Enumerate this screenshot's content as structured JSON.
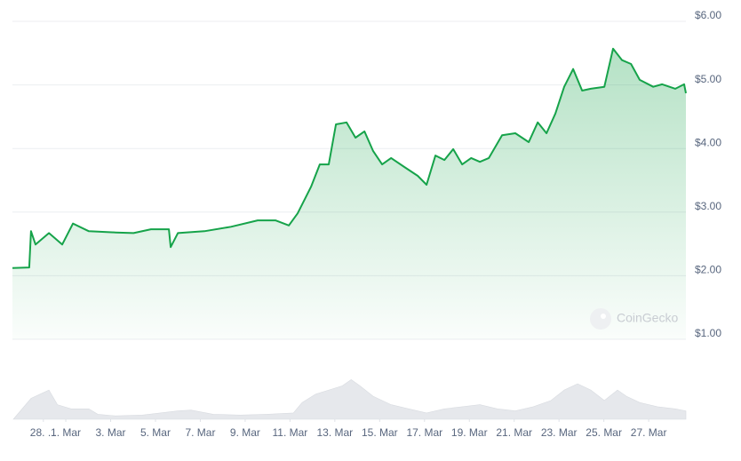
{
  "chart_data": {
    "type": "line",
    "color": "#16a34a",
    "x": [
      -1.38,
      -0.63,
      -0.55,
      -0.35,
      0.25,
      0.84,
      1.32,
      2.03,
      3.22,
      4.02,
      4.8,
      5.6,
      5.68,
      6.0,
      7.18,
      8.37,
      9.56,
      10.35,
      10.95,
      11.34,
      11.94,
      12.33,
      12.73,
      13.05,
      13.52,
      13.92,
      14.32,
      14.71,
      15.11,
      15.51,
      16.1,
      16.7,
      17.09,
      17.49,
      17.89,
      18.28,
      18.68,
      19.08,
      19.47,
      19.87,
      20.46,
      21.05,
      21.65,
      22.05,
      22.44,
      22.84,
      23.23,
      23.63,
      24.03,
      24.42,
      25.02,
      25.41,
      25.81,
      26.21,
      26.6,
      27.2,
      27.6,
      28.19,
      28.58,
      28.66
    ],
    "values": [
      2.12,
      2.13,
      2.7,
      2.49,
      2.67,
      2.49,
      2.82,
      2.7,
      2.68,
      2.67,
      2.73,
      2.73,
      2.45,
      2.67,
      2.7,
      2.77,
      2.87,
      2.87,
      2.79,
      2.98,
      3.4,
      3.75,
      3.75,
      4.38,
      4.41,
      4.17,
      4.27,
      3.96,
      3.75,
      3.85,
      3.71,
      3.57,
      3.43,
      3.89,
      3.82,
      3.99,
      3.75,
      3.85,
      3.79,
      3.85,
      4.21,
      4.24,
      4.1,
      4.41,
      4.24,
      4.55,
      4.97,
      5.25,
      4.91,
      4.94,
      4.97,
      5.57,
      5.39,
      5.33,
      5.08,
      4.97,
      5.01,
      4.94,
      5.01,
      4.87
    ],
    "xlim": [
      -1.38,
      28.66
    ],
    "ylim": [
      1,
      6
    ],
    "yticks": [
      {
        "value": 6,
        "label": "$6.00"
      },
      {
        "value": 5,
        "label": "$5.00"
      },
      {
        "value": 4,
        "label": "$4.00"
      },
      {
        "value": 3,
        "label": "$3.00"
      },
      {
        "value": 2,
        "label": "$2.00"
      },
      {
        "value": 1,
        "label": "$1.00"
      }
    ],
    "xticks": [
      {
        "value": 0,
        "label": "28. ..."
      },
      {
        "value": 1,
        "label": "1. Mar"
      },
      {
        "value": 3,
        "label": "3. Mar"
      },
      {
        "value": 5,
        "label": "5. Mar"
      },
      {
        "value": 7,
        "label": "7. Mar"
      },
      {
        "value": 9,
        "label": "9. Mar"
      },
      {
        "value": 11,
        "label": "11. Mar"
      },
      {
        "value": 13,
        "label": "13. Mar"
      },
      {
        "value": 15,
        "label": "15. Mar"
      },
      {
        "value": 17,
        "label": "17. Mar"
      },
      {
        "value": 19,
        "label": "19. Mar"
      },
      {
        "value": 21,
        "label": "21. Mar"
      },
      {
        "value": 23,
        "label": "23. Mar"
      },
      {
        "value": 25,
        "label": "25. Mar"
      },
      {
        "value": 27,
        "label": "27. Mar"
      }
    ],
    "grid": true,
    "watermark": "CoinGecko",
    "volume": {
      "color": "#e6e8ec",
      "vlim": [
        0,
        100
      ],
      "x": [
        -1.34,
        -0.55,
        -0.15,
        0.25,
        0.63,
        1.24,
        2.03,
        2.43,
        3.22,
        4.41,
        5.21,
        6.0,
        6.59,
        7.58,
        8.77,
        9.96,
        11.15,
        11.54,
        12.14,
        12.73,
        13.33,
        13.73,
        14.12,
        14.71,
        15.51,
        16.3,
        17.09,
        17.89,
        18.68,
        19.47,
        20.26,
        21.05,
        21.85,
        22.64,
        23.23,
        23.83,
        24.42,
        25.02,
        25.61,
        26.01,
        26.6,
        27.39,
        28.19,
        28.66
      ],
      "values": [
        0,
        50,
        60,
        70,
        35,
        25,
        25,
        12,
        8,
        10,
        15,
        20,
        22,
        12,
        10,
        12,
        15,
        40,
        60,
        70,
        80,
        95,
        80,
        55,
        35,
        25,
        15,
        25,
        30,
        35,
        25,
        20,
        30,
        45,
        70,
        85,
        70,
        45,
        70,
        55,
        40,
        30,
        25,
        20
      ]
    }
  }
}
